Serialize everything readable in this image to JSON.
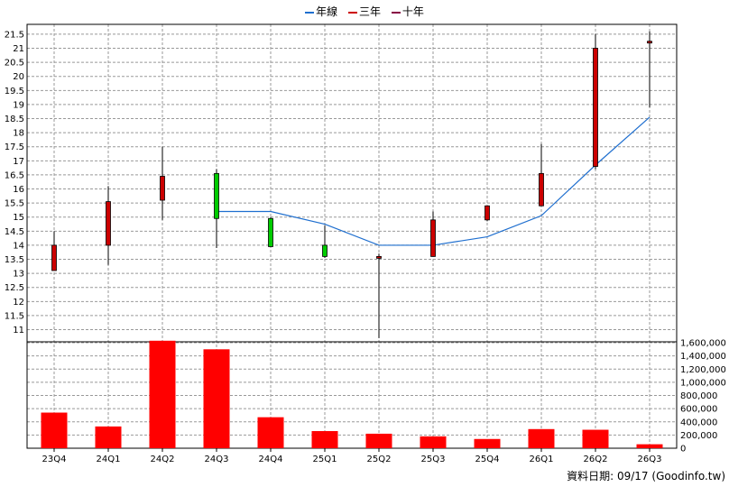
{
  "legend": [
    {
      "label": "年線",
      "color": "#1f6fcf"
    },
    {
      "label": "三年",
      "color": "#cc0000"
    },
    {
      "label": "十年",
      "color": "#880044"
    }
  ],
  "footer": {
    "date_label": "資料日期: 09/17",
    "source": "(Goodinfo.tw)"
  },
  "chart_data": [
    {
      "type": "candlestick",
      "categories": [
        "23Q4",
        "24Q1",
        "24Q2",
        "24Q3",
        "24Q4",
        "25Q1",
        "25Q2",
        "25Q3",
        "25Q4",
        "26Q1",
        "26Q2",
        "26Q3"
      ],
      "ohlc": [
        {
          "open": 13.1,
          "high": 14.5,
          "low": 13.1,
          "close": 14.0
        },
        {
          "open": 14.0,
          "high": 16.1,
          "low": 13.3,
          "close": 15.55
        },
        {
          "open": 15.6,
          "high": 17.5,
          "low": 14.9,
          "close": 16.45
        },
        {
          "open": 16.55,
          "high": 16.7,
          "low": 13.9,
          "close": 14.95
        },
        {
          "open": 14.95,
          "high": 15.0,
          "low": 13.95,
          "close": 13.95
        },
        {
          "open": 14.0,
          "high": 14.7,
          "low": 13.55,
          "close": 13.6
        },
        {
          "open": 13.55,
          "high": 13.7,
          "low": 10.7,
          "close": 13.6
        },
        {
          "open": 13.6,
          "high": 15.2,
          "low": 13.6,
          "close": 14.9
        },
        {
          "open": 14.9,
          "high": 15.4,
          "low": 14.85,
          "close": 15.4
        },
        {
          "open": 15.4,
          "high": 17.6,
          "low": 15.4,
          "close": 16.55
        },
        {
          "open": 16.8,
          "high": 21.5,
          "low": 16.7,
          "close": 21.0
        },
        {
          "open": 21.2,
          "high": 21.6,
          "low": 18.9,
          "close": 21.25
        }
      ],
      "series": [
        {
          "name": "年線",
          "values": [
            null,
            null,
            null,
            15.2,
            15.2,
            14.75,
            14.0,
            14.0,
            14.3,
            15.05,
            16.85,
            18.55
          ],
          "color": "#1f6fcf"
        }
      ],
      "up_color": "#cc0000",
      "down_color": "#00cc00",
      "yticks": [
        11,
        11.5,
        12,
        12.5,
        13,
        13.5,
        14,
        14.5,
        15,
        15.5,
        16,
        16.5,
        17,
        17.5,
        18,
        18.5,
        19,
        19.5,
        20,
        20.5,
        21,
        21.5
      ],
      "ylim": [
        10.6,
        21.85
      ]
    },
    {
      "type": "bar",
      "categories": [
        "23Q4",
        "24Q1",
        "24Q2",
        "24Q3",
        "24Q4",
        "25Q1",
        "25Q2",
        "25Q3",
        "25Q4",
        "26Q1",
        "26Q2",
        "26Q3"
      ],
      "values": [
        540000,
        330000,
        1630000,
        1500000,
        470000,
        260000,
        220000,
        180000,
        140000,
        290000,
        280000,
        60000
      ],
      "color": "#ff0000",
      "yticks": [
        "0",
        "200,000",
        "400,000",
        "600,000",
        "800,000",
        "1,000,000",
        "1,200,000",
        "1,400,000",
        "1,600,000"
      ],
      "ylim": [
        0,
        1600000
      ]
    }
  ]
}
